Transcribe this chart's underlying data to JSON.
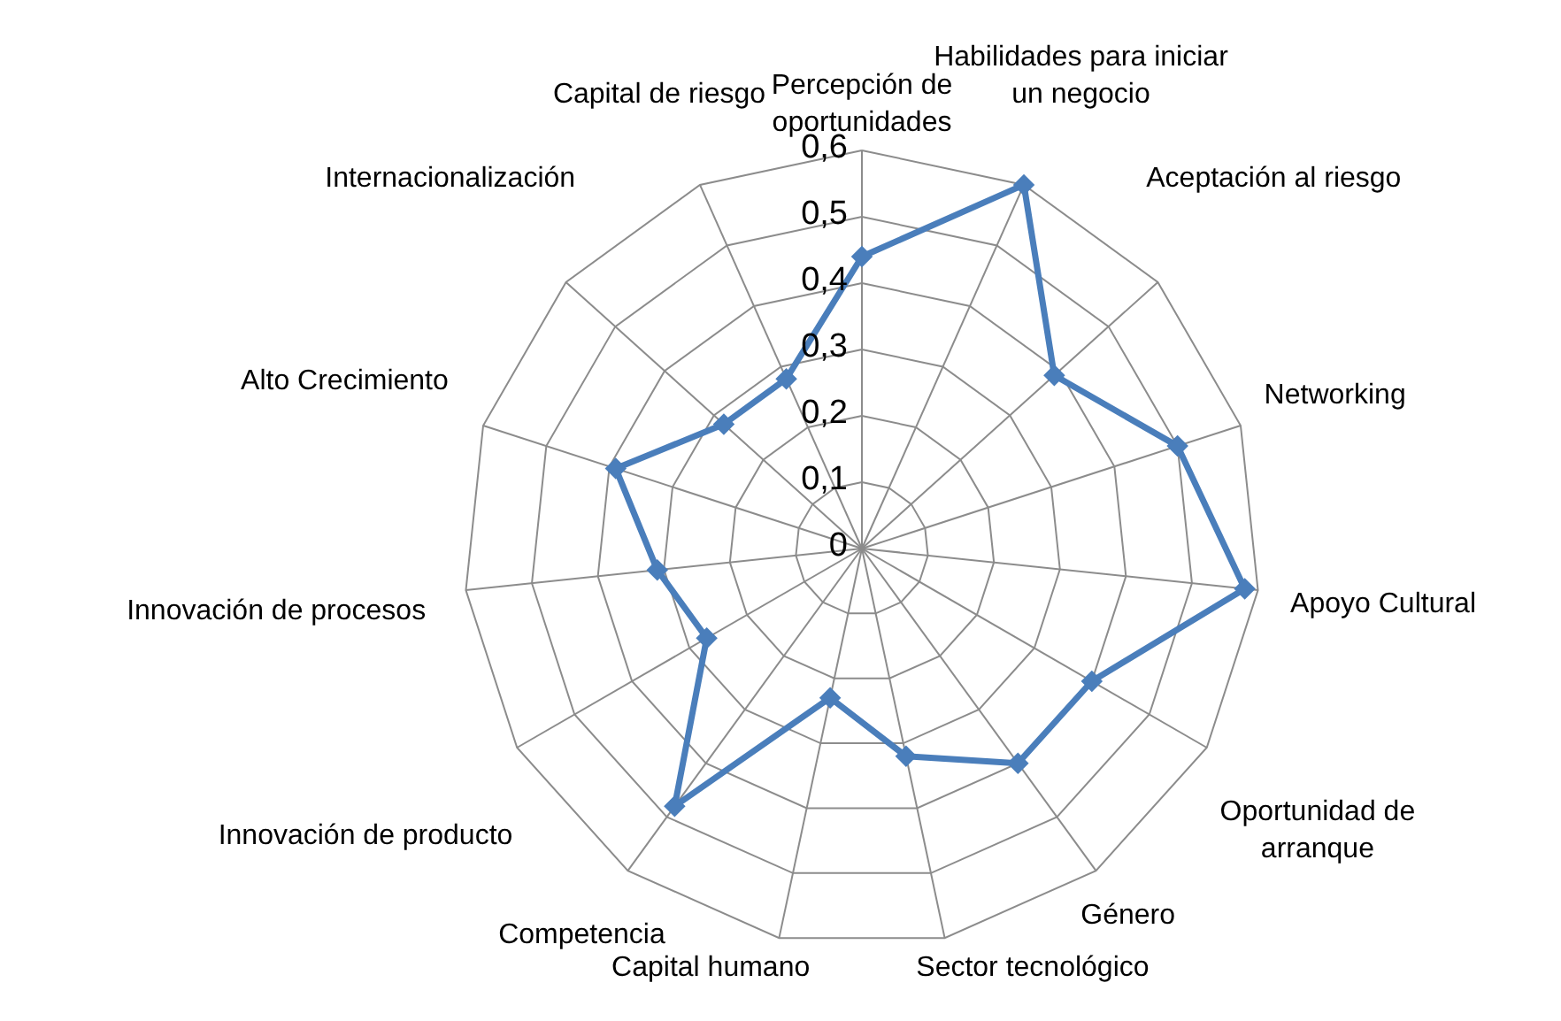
{
  "chart_data": {
    "type": "radar",
    "categories": [
      "Percepción de\noportunidades",
      "Habilidades para iniciar\nun negocio",
      "Aceptación al riesgo",
      "Networking",
      "Apoyo Cultural",
      "Oportunidad de\narranque",
      "Género",
      "Sector tecnológico",
      "Capital humano",
      "Competencia",
      "Innovación de producto",
      "Innovación de procesos",
      "Alto Crecimiento",
      "Internacionalización",
      "Capital de riesgo"
    ],
    "series": [
      {
        "color": "#4a7ebb",
        "values": [
          0.44,
          0.6,
          0.39,
          0.5,
          0.58,
          0.4,
          0.4,
          0.32,
          0.23,
          0.48,
          0.27,
          0.31,
          0.39,
          0.28,
          0.28
        ]
      }
    ],
    "ylim": [
      0,
      0.6
    ],
    "yticks": [
      0,
      {
        "value": 0.1,
        "label": "0,1"
      },
      {
        "value": 0.2,
        "label": "0,2"
      },
      {
        "value": 0.3,
        "label": "0,3"
      },
      {
        "value": 0.4,
        "label": "0,4"
      },
      {
        "value": 0.5,
        "label": "0,5"
      },
      {
        "value": 0.6,
        "label": "0,6"
      }
    ],
    "grid": true,
    "marker": "diamond"
  }
}
